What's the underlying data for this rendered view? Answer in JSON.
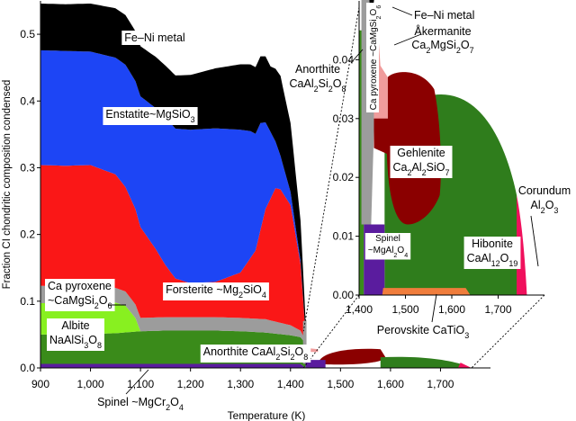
{
  "chart_data": [
    {
      "type": "area",
      "xlabel": "Temperature (K)",
      "ylabel": "Fraction CI chondritic composition condensed",
      "xlim": [
        900,
        1800
      ],
      "ylim": [
        0,
        0.55
      ],
      "x_ticks": [
        "900",
        "1,000",
        "1,100",
        "1,200",
        "1,300",
        "1,400",
        "1,500",
        "1,600",
        "1,700"
      ],
      "x_tick_values": [
        900,
        1000,
        1100,
        1200,
        1300,
        1400,
        1500,
        1600,
        1700
      ],
      "y_ticks": [
        "0.0",
        "0.1",
        "0.2",
        "0.3",
        "0.4",
        "0.5"
      ],
      "y_tick_values": [
        0,
        0.1,
        0.2,
        0.3,
        0.4,
        0.5
      ],
      "grid": false,
      "stack_order": [
        "spinel_mgcr",
        "anorthite",
        "albite",
        "ca_pyroxene",
        "forsterite",
        "enstatite",
        "feni"
      ],
      "series": [
        {
          "key": "spinel_mgcr",
          "color": "#5a1c9e",
          "x": [
            900,
            1100,
            1200,
            1250,
            1300,
            1350,
            1400,
            1420,
            1430,
            1440,
            1460,
            1500,
            1560,
            1700,
            1760
          ],
          "values": [
            0.006,
            0.006,
            0.006,
            0.006,
            0.006,
            0.006,
            0.006,
            0.006,
            0,
            0,
            0,
            0,
            0,
            0,
            0
          ]
        },
        {
          "key": "anorthite",
          "color": "#3a8b1a",
          "x": [
            900,
            950,
            1000,
            1050,
            1100,
            1150,
            1200,
            1250,
            1300,
            1350,
            1400,
            1420,
            1430
          ],
          "values": [
            0.044,
            0.044,
            0.045,
            0.046,
            0.049,
            0.05,
            0.05,
            0.05,
            0.049,
            0.047,
            0.043,
            0.04,
            0.037
          ]
        },
        {
          "key": "albite",
          "color": "#88f020",
          "x": [
            900,
            950,
            1000,
            1050,
            1070,
            1090,
            1100,
            1200,
            1300,
            1400,
            1430
          ],
          "values": [
            0.047,
            0.047,
            0.047,
            0.046,
            0.04,
            0.02,
            0,
            0,
            0,
            0,
            0
          ]
        },
        {
          "key": "ca_pyroxene",
          "color": "#9c9c9c",
          "x": [
            900,
            950,
            1000,
            1050,
            1080,
            1100,
            1150,
            1200,
            1250,
            1300,
            1350,
            1400,
            1420,
            1430
          ],
          "values": [
            0.026,
            0.025,
            0.024,
            0.022,
            0.021,
            0.02,
            0.02,
            0.02,
            0.02,
            0.02,
            0.02,
            0.015,
            0.01,
            0.004
          ]
        },
        {
          "key": "forsterite",
          "color": "#fa1717",
          "x": [
            900,
            950,
            1000,
            1050,
            1100,
            1130,
            1150,
            1170,
            1200,
            1250,
            1300,
            1330,
            1350,
            1370,
            1380,
            1400,
            1420,
            1430
          ],
          "values": [
            0.181,
            0.181,
            0.182,
            0.17,
            0.136,
            0.103,
            0.078,
            0.058,
            0.051,
            0.053,
            0.068,
            0.102,
            0.165,
            0.2,
            0.2,
            0.18,
            0.1,
            0.012
          ]
        },
        {
          "key": "enstatite",
          "color": "#1d45f5",
          "x": [
            900,
            950,
            1000,
            1050,
            1100,
            1150,
            1200,
            1250,
            1300,
            1320,
            1340,
            1360,
            1370,
            1380,
            1400,
            1420,
            1430
          ],
          "values": [
            0.172,
            0.172,
            0.17,
            0.175,
            0.196,
            0.221,
            0.23,
            0.23,
            0.214,
            0.19,
            0.16,
            0.1,
            0.07,
            0.05,
            0.02,
            0.005,
            0
          ]
        },
        {
          "key": "feni",
          "color": "#000000",
          "x": [
            900,
            950,
            1000,
            1050,
            1100,
            1150,
            1200,
            1250,
            1300,
            1320,
            1340,
            1360,
            1380,
            1400,
            1420,
            1430
          ],
          "values": [
            0.07,
            0.07,
            0.072,
            0.074,
            0.075,
            0.078,
            0.082,
            0.09,
            0.098,
            0.1,
            0.1,
            0.098,
            0.12,
            0.103,
            0.06,
            0.022
          ]
        }
      ],
      "annotations": [
        {
          "key": "feni",
          "lines": [
            [
              {
                "t": "Fe–Ni metal"
              }
            ]
          ]
        },
        {
          "key": "enstatite",
          "lines": [
            [
              {
                "t": "Enstatite~MgSiO"
              },
              {
                "t": "3",
                "sub": true
              }
            ]
          ]
        },
        {
          "key": "forsterite",
          "lines": [
            [
              {
                "t": "Forsterite ~Mg"
              },
              {
                "t": "2",
                "sub": true
              },
              {
                "t": "SiO"
              },
              {
                "t": "4",
                "sub": true
              }
            ]
          ]
        },
        {
          "key": "ca_pyroxene",
          "lines": [
            [
              {
                "t": "Ca pyroxene"
              }
            ],
            [
              {
                "t": "~CaMgSi"
              },
              {
                "t": "2",
                "sub": true
              },
              {
                "t": "O"
              },
              {
                "t": "6",
                "sub": true
              }
            ]
          ]
        },
        {
          "key": "albite",
          "lines": [
            [
              {
                "t": "Albite"
              }
            ],
            [
              {
                "t": "NaAlSi"
              },
              {
                "t": "3",
                "sub": true
              },
              {
                "t": "O"
              },
              {
                "t": "8",
                "sub": true
              }
            ]
          ]
        },
        {
          "key": "anorthite",
          "lines": [
            [
              {
                "t": "Anorthite CaAl"
              },
              {
                "t": "2",
                "sub": true
              },
              {
                "t": "Si"
              },
              {
                "t": "2",
                "sub": true
              },
              {
                "t": "O"
              },
              {
                "t": "8",
                "sub": true
              }
            ]
          ]
        },
        {
          "key": "spinel_mgcr",
          "lines": [
            [
              {
                "t": "Spinel ~MgCr"
              },
              {
                "t": "2",
                "sub": true
              },
              {
                "t": "O"
              },
              {
                "t": "4",
                "sub": true
              }
            ]
          ]
        }
      ]
    },
    {
      "type": "area",
      "xlabel": "",
      "ylabel": "",
      "xlim": [
        1400,
        1800
      ],
      "ylim": [
        0,
        0.05
      ],
      "x_ticks": [
        "1,400",
        "1,500",
        "1,600",
        "1,700"
      ],
      "x_tick_values": [
        1400,
        1500,
        1600,
        1700
      ],
      "y_ticks": [
        "0.00",
        "0.01",
        "0.02",
        "0.03",
        "0.04"
      ],
      "y_tick_values": [
        0,
        0.01,
        0.02,
        0.03,
        0.04
      ],
      "grid": false,
      "series": [
        {
          "key": "i_spinel",
          "color": "#5a1c9e",
          "x_range": [
            1410,
            1455
          ],
          "y_range": [
            0,
            0.012
          ]
        },
        {
          "key": "i_perovskite",
          "color": "#f07d3c",
          "x_range": [
            1450,
            1640
          ],
          "y_range": [
            0,
            0.0012
          ]
        },
        {
          "key": "i_hibonite",
          "color": "#2f7d1c",
          "x_range": [
            1455,
            1750
          ],
          "y_range": [
            0,
            0.042
          ]
        },
        {
          "key": "i_corundum",
          "color": "#f0105c",
          "x_range": [
            1740,
            1762
          ],
          "y_range": [
            0,
            0.017
          ]
        },
        {
          "key": "i_gehlenite",
          "color": "#8b0000",
          "x_range": [
            1462,
            1578
          ],
          "y_range": [
            0.016,
            0.038
          ]
        },
        {
          "key": "i_akermanite",
          "color": "#f09c9c",
          "x_range": [
            1432,
            1446
          ],
          "y_range": [
            0.037,
            0.042
          ]
        },
        {
          "key": "i_anorthite",
          "color": "#3a8b1a",
          "x_range": [
            1400,
            1410
          ],
          "y_range": [
            0,
            0.045
          ]
        },
        {
          "key": "i_ca_pyroxene",
          "color": "#9c9c9c",
          "x_range": [
            1405,
            1432
          ],
          "y_range": [
            0.015,
            0.053
          ]
        },
        {
          "key": "i_feni",
          "color": "#000000",
          "x_range": [
            1420,
            1438
          ],
          "y_range": [
            0.049,
            0.053
          ]
        }
      ],
      "annotations": [
        {
          "key": "i_feni",
          "lines": [
            [
              {
                "t": "Fe–Ni metal"
              }
            ]
          ]
        },
        {
          "key": "i_akermanite",
          "lines": [
            [
              {
                "t": "Åkermanite"
              }
            ],
            [
              {
                "t": "Ca"
              },
              {
                "t": "2",
                "sub": true
              },
              {
                "t": "MgSi"
              },
              {
                "t": "2",
                "sub": true
              },
              {
                "t": "O"
              },
              {
                "t": "7",
                "sub": true
              }
            ]
          ]
        },
        {
          "key": "i_anorthite",
          "lines": [
            [
              {
                "t": "Anorthite"
              }
            ],
            [
              {
                "t": "CaAl"
              },
              {
                "t": "2",
                "sub": true
              },
              {
                "t": "Si"
              },
              {
                "t": "2",
                "sub": true
              },
              {
                "t": "O"
              },
              {
                "t": "8",
                "sub": true
              }
            ]
          ]
        },
        {
          "key": "i_ca_pyroxene",
          "lines": [
            [
              {
                "t": "Ca pyroxene ~CaMgSi"
              },
              {
                "t": "2",
                "sub": true
              },
              {
                "t": "O"
              },
              {
                "t": "6",
                "sub": true
              }
            ]
          ]
        },
        {
          "key": "i_gehlenite",
          "lines": [
            [
              {
                "t": "Gehlenite"
              }
            ],
            [
              {
                "t": "Ca"
              },
              {
                "t": "2",
                "sub": true
              },
              {
                "t": "Al"
              },
              {
                "t": "2",
                "sub": true
              },
              {
                "t": "SiO"
              },
              {
                "t": "7",
                "sub": true
              }
            ]
          ]
        },
        {
          "key": "i_spinel",
          "lines": [
            [
              {
                "t": "Spinel"
              }
            ],
            [
              {
                "t": "~MgAl"
              },
              {
                "t": "2",
                "sub": true
              },
              {
                "t": "O"
              },
              {
                "t": "4",
                "sub": true
              }
            ]
          ]
        },
        {
          "key": "i_hibonite",
          "lines": [
            [
              {
                "t": "Hibonite"
              }
            ],
            [
              {
                "t": "CaAl"
              },
              {
                "t": "12",
                "sub": true
              },
              {
                "t": "O"
              },
              {
                "t": "19",
                "sub": true
              }
            ]
          ]
        },
        {
          "key": "i_corundum",
          "lines": [
            [
              {
                "t": "Corundum"
              }
            ],
            [
              {
                "t": "Al"
              },
              {
                "t": "2",
                "sub": true
              },
              {
                "t": "O"
              },
              {
                "t": "3",
                "sub": true
              }
            ]
          ]
        },
        {
          "key": "i_perovskite",
          "lines": [
            [
              {
                "t": "Perovskite CaTiO"
              },
              {
                "t": "3",
                "sub": true
              }
            ]
          ]
        }
      ]
    }
  ]
}
